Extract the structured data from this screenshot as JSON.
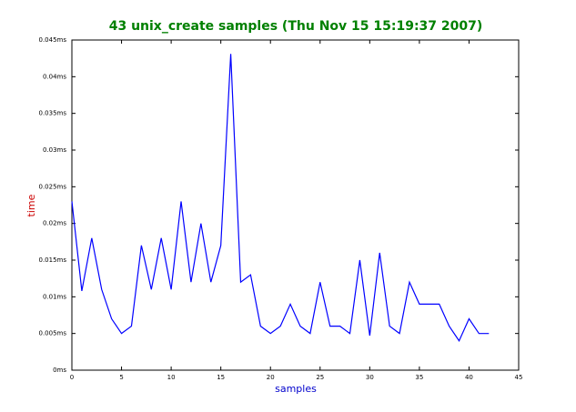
{
  "chart_data": {
    "type": "line",
    "title": "43 unix_create samples (Thu Nov 15 15:19:37 2007)",
    "xlabel": "samples",
    "ylabel": "time",
    "x": [
      0,
      1,
      2,
      3,
      4,
      5,
      6,
      7,
      8,
      9,
      10,
      11,
      12,
      13,
      14,
      15,
      16,
      17,
      18,
      19,
      20,
      21,
      22,
      23,
      24,
      25,
      26,
      27,
      28,
      29,
      30,
      31,
      32,
      33,
      34,
      35,
      36,
      37,
      38,
      39,
      40,
      41,
      42
    ],
    "values": [
      0.023,
      0.0108,
      0.018,
      0.011,
      0.007,
      0.005,
      0.006,
      0.017,
      0.011,
      0.018,
      0.011,
      0.023,
      0.012,
      0.02,
      0.012,
      0.017,
      0.0431,
      0.012,
      0.013,
      0.006,
      0.005,
      0.006,
      0.009,
      0.006,
      0.005,
      0.012,
      0.006,
      0.006,
      0.005,
      0.015,
      0.0047,
      0.016,
      0.006,
      0.005,
      0.012,
      0.009,
      0.009,
      0.009,
      0.006,
      0.004,
      0.007,
      0.005,
      0.005
    ],
    "color": "#0000ff",
    "xlim": [
      0,
      45
    ],
    "xticks": [
      0,
      5,
      10,
      15,
      20,
      25,
      30,
      35,
      40,
      45
    ],
    "ylim": [
      0,
      0.045
    ],
    "yticks": [
      {
        "value": 0,
        "label": "0ms"
      },
      {
        "value": 0.005,
        "label": "0.005ms"
      },
      {
        "value": 0.01,
        "label": "0.01ms"
      },
      {
        "value": 0.015,
        "label": "0.015ms"
      },
      {
        "value": 0.02,
        "label": "0.02ms"
      },
      {
        "value": 0.025,
        "label": "0.025ms"
      },
      {
        "value": 0.03,
        "label": "0.03ms"
      },
      {
        "value": 0.035,
        "label": "0.035ms"
      },
      {
        "value": 0.04,
        "label": "0.04ms"
      },
      {
        "value": 0.045,
        "label": "0.045ms"
      }
    ]
  }
}
